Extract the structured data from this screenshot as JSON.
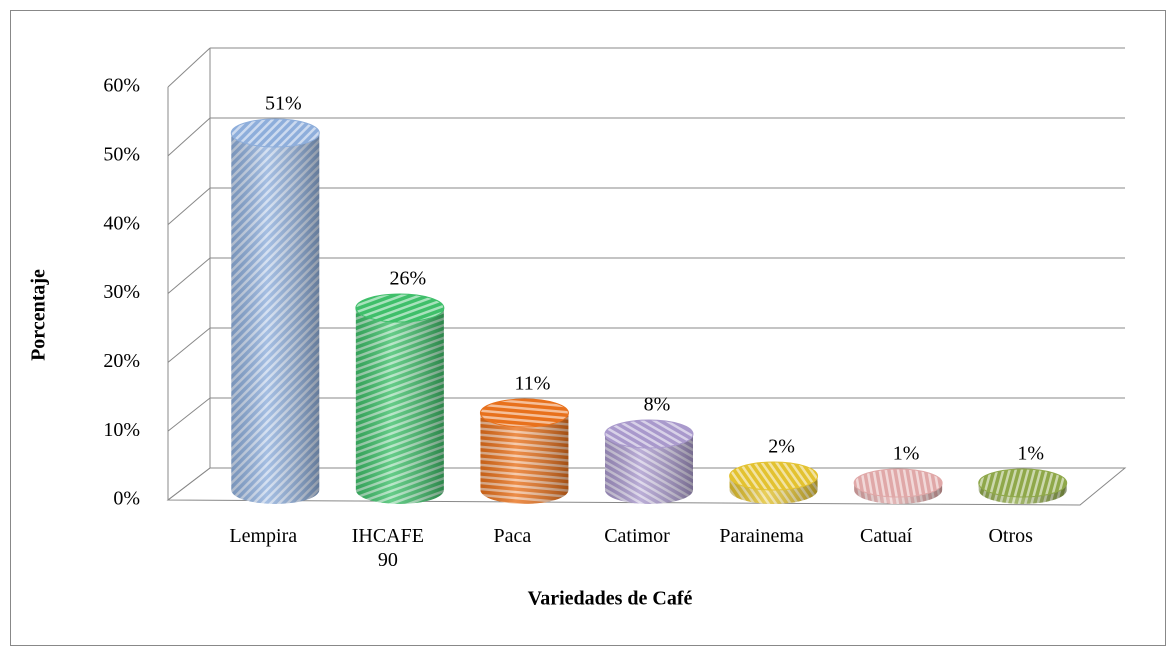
{
  "chart_data": {
    "type": "bar3d",
    "categories": [
      "Lempira",
      "IHCAFE 90",
      "Paca",
      "Catimor",
      "Parainema",
      "Catuaí",
      "Otros"
    ],
    "values": [
      51,
      26,
      11,
      8,
      2,
      1,
      1
    ],
    "value_labels": [
      "51%",
      "26%",
      "11%",
      "8%",
      "2%",
      "1%",
      "1%"
    ],
    "colors": [
      "#8eaedb",
      "#3fbf6a",
      "#e8711c",
      "#a999cc",
      "#e3c230",
      "#e0a8a8",
      "#8fa84a"
    ],
    "ylim": [
      0,
      60
    ],
    "yticks": [
      {
        "value": 0,
        "label": "0%"
      },
      {
        "value": 10,
        "label": "10%"
      },
      {
        "value": 20,
        "label": "20%"
      },
      {
        "value": 30,
        "label": "30%"
      },
      {
        "value": 40,
        "label": "40%"
      },
      {
        "value": 50,
        "label": "50%"
      },
      {
        "value": 60,
        "label": "60%"
      }
    ],
    "y_label": "Porcentaje",
    "x_label": "Variedades de Café",
    "grid": true
  }
}
